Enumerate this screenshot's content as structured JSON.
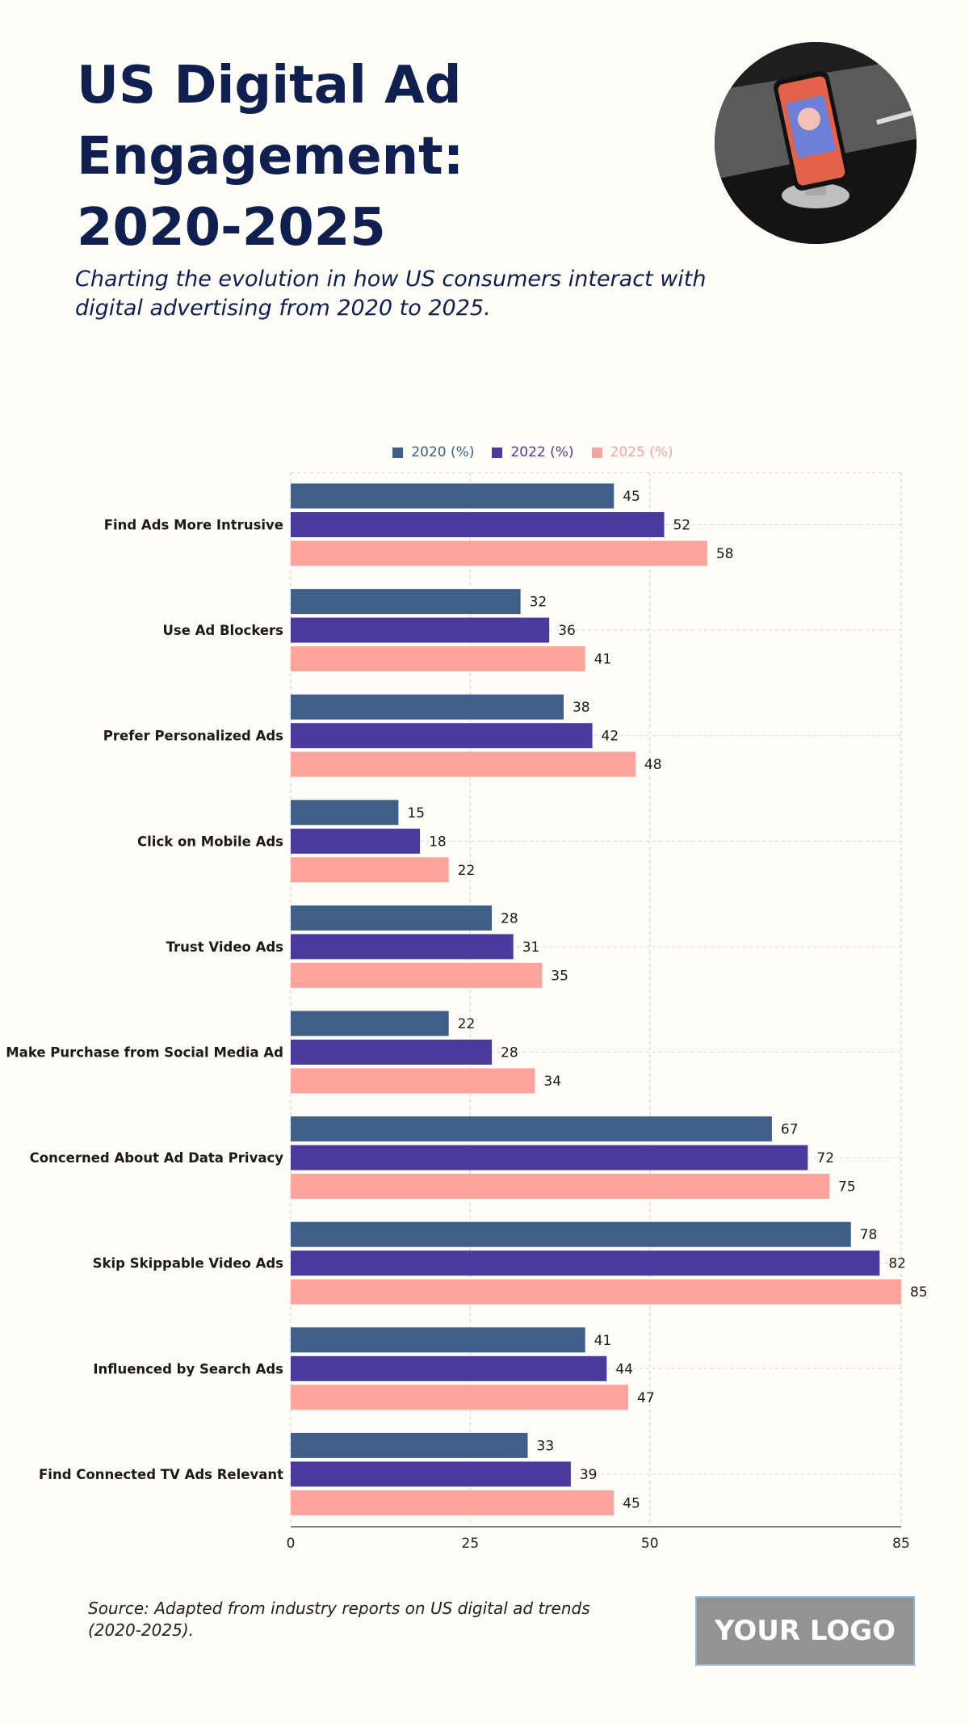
{
  "header": {
    "title": "US Digital Ad Engagement: 2020-2025",
    "subtitle": "Charting the evolution in how US consumers interact with digital advertising from 2020 to 2025."
  },
  "footer": {
    "source": "Source: Adapted from industry reports on US digital ad trends (2020-2025).",
    "logo": "YOUR LOGO"
  },
  "chart_data": {
    "type": "bar",
    "orientation": "horizontal",
    "categories": [
      "Find Ads More Intrusive",
      "Use Ad Blockers",
      "Prefer Personalized Ads",
      "Click on Mobile Ads",
      "Trust Video Ads",
      "Make Purchase from Social Media Ad",
      "Concerned About Ad Data Privacy",
      "Skip Skippable Video Ads",
      "Influenced by Search Ads",
      "Find Connected TV Ads Relevant"
    ],
    "series": [
      {
        "name": "2020 (%)",
        "color": "#3f5f88",
        "values": [
          45,
          32,
          38,
          15,
          28,
          22,
          67,
          78,
          41,
          33
        ]
      },
      {
        "name": "2022 (%)",
        "color": "#4b3a9e",
        "values": [
          52,
          36,
          42,
          18,
          31,
          28,
          72,
          82,
          44,
          39
        ]
      },
      {
        "name": "2025 (%)",
        "color": "#ffa49c",
        "values": [
          58,
          41,
          48,
          22,
          35,
          34,
          75,
          85,
          47,
          45
        ]
      }
    ],
    "xlim": [
      0,
      85
    ],
    "xticks": [
      0,
      25,
      50,
      85
    ],
    "grid": true,
    "legend": "top"
  }
}
